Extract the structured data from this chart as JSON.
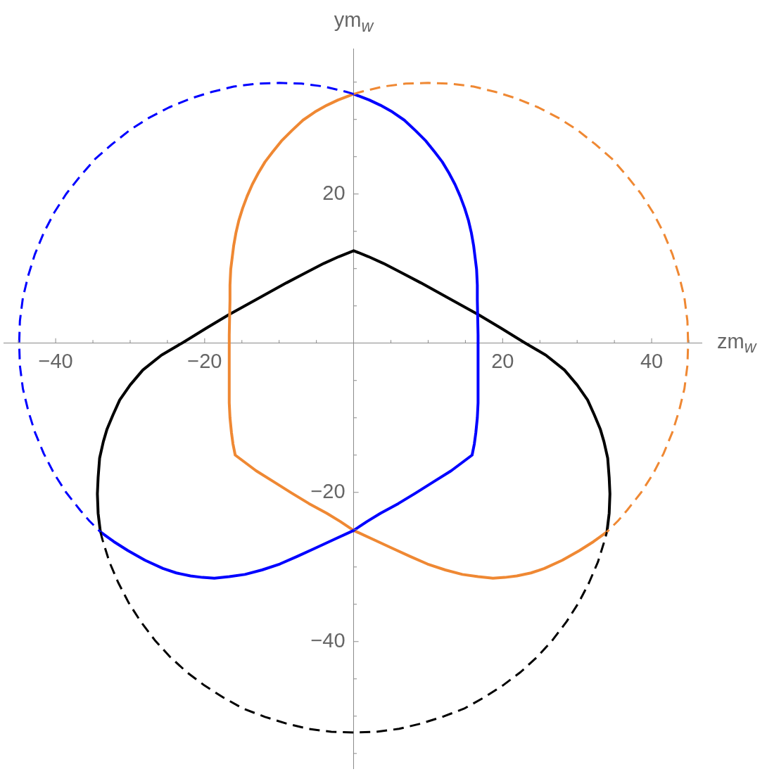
{
  "chart_data": {
    "type": "line",
    "xlabel": "zm$_{w}$",
    "ylabel": "ym$_{w}$",
    "marker": "none",
    "xlim": [
      -47,
      46.7
    ],
    "ylim": [
      -57,
      39.5
    ],
    "xticks": [
      {
        "value": -45,
        "label": null
      },
      {
        "value": -40,
        "label": "−40"
      },
      {
        "value": -35,
        "label": null
      },
      {
        "value": -30,
        "label": null
      },
      {
        "value": -25,
        "label": null
      },
      {
        "value": -20,
        "label": "−20"
      },
      {
        "value": -15,
        "label": null
      },
      {
        "value": -10,
        "label": null
      },
      {
        "value": -5,
        "label": null
      },
      {
        "value": 5,
        "label": null
      },
      {
        "value": 10,
        "label": null
      },
      {
        "value": 15,
        "label": null
      },
      20,
      {
        "value": 25,
        "label": null
      },
      {
        "value": 30,
        "label": null
      },
      {
        "value": 35,
        "label": null
      },
      40,
      {
        "value": 45,
        "label": null
      }
    ],
    "yticks": [
      {
        "value": -55,
        "label": null
      },
      {
        "value": -50,
        "label": null
      },
      {
        "value": -45,
        "label": null
      },
      {
        "value": -40,
        "label": "−40"
      },
      {
        "value": -35,
        "label": null
      },
      {
        "value": -30,
        "label": null
      },
      {
        "value": -25,
        "label": null
      },
      {
        "value": -20,
        "label": "−20"
      },
      {
        "value": -15,
        "label": null
      },
      {
        "value": -10,
        "label": null
      },
      {
        "value": -5,
        "label": null
      },
      {
        "value": 5,
        "label": null
      },
      {
        "value": 10,
        "label": null
      },
      {
        "value": 15,
        "label": null
      },
      20,
      {
        "value": 25,
        "label": null
      },
      {
        "value": 30,
        "label": null
      },
      {
        "value": 35,
        "label": null
      }
    ],
    "series": [
      {
        "color": "#0000ff",
        "line_style": "dashed",
        "x": [
          0,
          -1.0,
          -3.9,
          -7.0,
          -10,
          -13.0,
          -16.1,
          -19.0,
          -21.9,
          -24.8,
          -27.5,
          -30.0,
          -32.4,
          -34.7,
          -36.7,
          -38.6,
          -40.2,
          -41.6,
          -42.8,
          -43.7,
          -44.4,
          -44.8,
          -44.9,
          -44.8,
          -44.4,
          -43.7,
          -42.8,
          -41.6,
          -40.2,
          -38.6,
          -36.7,
          -35.5,
          -34.0
        ],
        "values": [
          33.4,
          33.7,
          34.4,
          34.8,
          34.9,
          34.8,
          34.4,
          33.7,
          32.8,
          31.6,
          30.2,
          28.6,
          26.7,
          24.7,
          22.4,
          20.0,
          17.5,
          14.8,
          11.9,
          9.0,
          6.1,
          3.0,
          0,
          -3.0,
          -6.1,
          -9.0,
          -11.9,
          -14.8,
          -17.5,
          -20.0,
          -22.4,
          -23.8,
          -25.3
        ]
      },
      {
        "color": "#ef8833",
        "line_style": "dashed",
        "x": [
          0,
          1.0,
          3.9,
          7.0,
          10,
          13.0,
          16.1,
          19.0,
          21.9,
          24.8,
          27.5,
          30.0,
          32.4,
          34.7,
          36.7,
          38.6,
          40.2,
          41.6,
          42.8,
          43.7,
          44.4,
          44.8,
          44.9,
          44.8,
          44.4,
          43.7,
          42.8,
          41.6,
          40.2,
          38.6,
          36.7,
          35.5,
          34.0
        ],
        "values": [
          33.4,
          33.7,
          34.4,
          34.8,
          34.9,
          34.8,
          34.4,
          33.7,
          32.8,
          31.6,
          30.2,
          28.6,
          26.7,
          24.7,
          22.4,
          20.0,
          17.5,
          14.8,
          11.9,
          9.0,
          6.1,
          3.0,
          0,
          -3.0,
          -6.1,
          -9.0,
          -11.9,
          -14.8,
          -17.5,
          -20.0,
          -22.4,
          -23.8,
          -25.3
        ]
      },
      {
        "color": "#000000",
        "line_style": "dashed",
        "x": [
          -34.0,
          -33.7,
          -32.8,
          -31.6,
          -30.2,
          -28.6,
          -26.7,
          -24.7,
          -22.4,
          -20.0,
          -17.5,
          -14.8,
          -11.9,
          -9.0,
          -6.1,
          -3.0,
          0,
          3.0,
          6.1,
          9.0,
          11.9,
          14.8,
          17.5,
          20.0,
          22.4,
          24.7,
          26.7,
          28.6,
          30.2,
          31.6,
          32.8,
          33.7,
          34.0
        ],
        "values": [
          -25.3,
          -26.4,
          -29.3,
          -32.1,
          -34.8,
          -37.3,
          -39.8,
          -42.0,
          -44.1,
          -45.9,
          -47.5,
          -49.0,
          -50.1,
          -51.0,
          -51.7,
          -52.1,
          -52.2,
          -52.1,
          -51.7,
          -51.0,
          -50.1,
          -49.0,
          -47.5,
          -45.9,
          -44.1,
          -42.0,
          -39.8,
          -37.3,
          -34.8,
          -32.1,
          -29.3,
          -26.4,
          -25.3
        ]
      },
      {
        "color": "#0000ff",
        "line_style": "solid",
        "x": [
          0,
          2.1,
          3.6,
          5.2,
          6.8,
          8.3,
          9.7,
          10.9,
          11.9,
          12.8,
          13.6,
          14.3,
          14.9,
          15.4,
          15.8,
          16.1,
          16.3,
          16.5,
          16.6,
          16.6,
          16.7,
          16.7,
          16.6,
          16.4,
          16.2,
          15.9,
          13.1,
          10.7,
          8.3,
          6.0,
          3.6,
          1.8,
          0,
          -2.6,
          -5.2,
          -7.6,
          -9.9,
          -12.3,
          -14.6,
          -16.7,
          -18.7,
          -20.3,
          -21.9,
          -23.8,
          -25.6,
          -28.0,
          -30.3,
          -32.2,
          -34.0
        ],
        "values": [
          33.4,
          32.6,
          31.9,
          31.0,
          29.9,
          28.5,
          27.1,
          25.6,
          24.3,
          22.8,
          21.3,
          19.7,
          18.1,
          16.5,
          14.8,
          13.1,
          11.5,
          9.9,
          7.8,
          5.8,
          1.1,
          -8.0,
          -10.0,
          -12.0,
          -13.5,
          -15.0,
          -17.1,
          -18.6,
          -20.1,
          -21.5,
          -22.8,
          -23.9,
          -25.1,
          -26.3,
          -27.5,
          -28.6,
          -29.6,
          -30.4,
          -31.0,
          -31.3,
          -31.5,
          -31.4,
          -31.2,
          -30.8,
          -30.2,
          -29.1,
          -27.8,
          -26.6,
          -25.3
        ]
      },
      {
        "color": "#ef8833",
        "line_style": "solid",
        "x": [
          0,
          -2.1,
          -3.6,
          -5.2,
          -6.8,
          -8.3,
          -9.7,
          -10.9,
          -11.9,
          -12.8,
          -13.6,
          -14.3,
          -14.9,
          -15.4,
          -15.8,
          -16.1,
          -16.3,
          -16.5,
          -16.6,
          -16.6,
          -16.7,
          -16.7,
          -16.6,
          -16.4,
          -16.2,
          -15.9,
          -13.1,
          -10.7,
          -8.3,
          -6.0,
          -3.6,
          -1.8,
          0,
          2.6,
          5.2,
          7.6,
          9.9,
          12.3,
          14.6,
          16.7,
          18.7,
          20.3,
          21.9,
          23.8,
          25.6,
          28.0,
          30.3,
          32.2,
          34.0
        ],
        "values": [
          33.4,
          32.6,
          31.9,
          31.0,
          29.9,
          28.5,
          27.1,
          25.6,
          24.3,
          22.8,
          21.3,
          19.7,
          18.1,
          16.5,
          14.8,
          13.1,
          11.5,
          9.9,
          7.8,
          5.8,
          1.1,
          -8.0,
          -10.0,
          -12.0,
          -13.5,
          -15.0,
          -17.1,
          -18.6,
          -20.1,
          -21.5,
          -22.8,
          -23.9,
          -25.1,
          -26.3,
          -27.5,
          -28.6,
          -29.6,
          -30.4,
          -31.0,
          -31.3,
          -31.5,
          -31.4,
          -31.2,
          -30.8,
          -30.2,
          -29.1,
          -27.8,
          -26.6,
          -25.3
        ]
      },
      {
        "color": "#000000",
        "line_style": "solid",
        "x": [
          -34.0,
          -34.3,
          -34.4,
          -34.3,
          -34.1,
          -33.6,
          -33.1,
          -32.3,
          -31.4,
          -30.0,
          -28.3,
          -25.8,
          -22.9,
          -19.8,
          -16.8,
          -13.0,
          -9.0,
          -6.5,
          -4.0,
          -2.0,
          0,
          2.0,
          4.0,
          6.5,
          9.0,
          13.0,
          16.8,
          19.8,
          22.9,
          25.8,
          28.3,
          30.0,
          31.4,
          32.3,
          33.1,
          33.6,
          34.1,
          34.3,
          34.4,
          34.3,
          34.0
        ],
        "values": [
          -25.3,
          -22.8,
          -20.2,
          -18.0,
          -15.4,
          -13.2,
          -11.5,
          -9.6,
          -7.6,
          -5.6,
          -3.6,
          -1.6,
          0.1,
          2.0,
          3.8,
          5.9,
          8.1,
          9.4,
          10.7,
          11.6,
          12.4,
          11.6,
          10.7,
          9.4,
          8.1,
          5.9,
          3.8,
          2.0,
          0.1,
          -1.6,
          -3.6,
          -5.6,
          -7.6,
          -9.6,
          -11.5,
          -13.2,
          -15.4,
          -18.0,
          -20.2,
          -22.8,
          -25.3
        ]
      }
    ]
  }
}
